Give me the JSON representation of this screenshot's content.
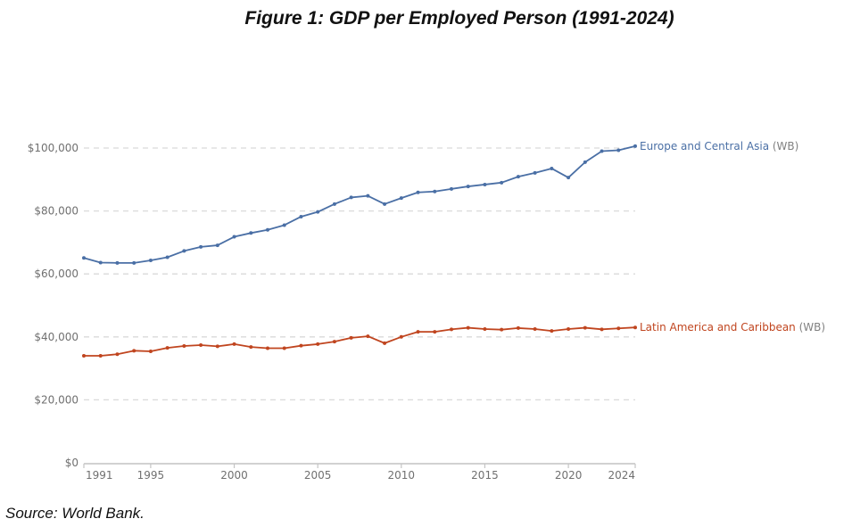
{
  "title": "Figure 1: GDP per Employed Person (1991-2024)",
  "source": "Source: World Bank.",
  "chart_data": {
    "type": "line",
    "title": "Figure 1: GDP per Employed Person (1991-2024)",
    "xlabel": "",
    "ylabel": "",
    "x": [
      1991,
      1992,
      1993,
      1994,
      1995,
      1996,
      1997,
      1998,
      1999,
      2000,
      2001,
      2002,
      2003,
      2004,
      2005,
      2006,
      2007,
      2008,
      2009,
      2010,
      2011,
      2012,
      2013,
      2014,
      2015,
      2016,
      2017,
      2018,
      2019,
      2020,
      2021,
      2022,
      2023,
      2024
    ],
    "xlim": [
      1991,
      2024
    ],
    "ylim": [
      0,
      100000
    ],
    "x_ticks": [
      "1991",
      "1995",
      "2000",
      "2005",
      "2010",
      "2015",
      "2020",
      "2024"
    ],
    "x_tick_values": [
      1991,
      1995,
      2000,
      2005,
      2010,
      2015,
      2020,
      2024
    ],
    "y_ticks": [
      "$0",
      "$20,000",
      "$40,000",
      "$60,000",
      "$80,000",
      "$100,000"
    ],
    "y_tick_values": [
      0,
      20000,
      40000,
      60000,
      80000,
      100000
    ],
    "grid": "horizontal-dashed",
    "legend": "inline-right-of-line-end",
    "series": [
      {
        "name": "Europe and Central Asia",
        "suffix": "(WB)",
        "color": "#4a6fa5",
        "values": [
          65100,
          63600,
          63500,
          63500,
          64300,
          65300,
          67300,
          68600,
          69100,
          71800,
          73000,
          74000,
          75500,
          78200,
          79700,
          82200,
          84300,
          84800,
          82200,
          84100,
          85900,
          86200,
          87000,
          87800,
          88400,
          89000,
          90900,
          92100,
          93500,
          90600,
          95500,
          99000,
          99300,
          100600
        ]
      },
      {
        "name": "Latin America and Caribbean",
        "suffix": "(WB)",
        "color": "#c0451f",
        "values": [
          34000,
          34000,
          34500,
          35600,
          35400,
          36500,
          37100,
          37400,
          37000,
          37700,
          36800,
          36400,
          36400,
          37200,
          37700,
          38500,
          39700,
          40200,
          38000,
          40000,
          41600,
          41600,
          42400,
          42900,
          42500,
          42300,
          42800,
          42500,
          41900,
          42500,
          42900,
          42400,
          42700,
          43000
        ]
      }
    ]
  }
}
